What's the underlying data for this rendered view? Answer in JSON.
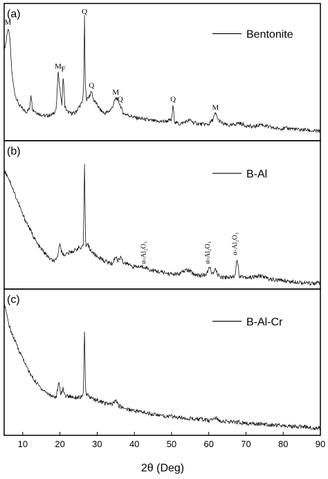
{
  "chart_data": {
    "type": "line",
    "shared_x_axis": {
      "label": "2θ (Deg)",
      "range": [
        5,
        90
      ],
      "ticks": [
        "10",
        "20",
        "30",
        "40",
        "50",
        "60",
        "70",
        "80",
        "90"
      ]
    },
    "panels": [
      {
        "label": "(a)",
        "series": [
          {
            "name": "Bentonite",
            "points": [
              [
                5,
                0.66
              ],
              [
                5.5,
                0.72
              ],
              [
                6,
                0.82
              ],
              [
                6.5,
                0.76
              ],
              [
                7,
                0.52
              ],
              [
                7.5,
                0.4
              ],
              [
                8,
                0.33
              ],
              [
                9,
                0.26
              ],
              [
                10,
                0.23
              ],
              [
                11,
                0.21
              ],
              [
                11.8,
                0.23
              ],
              [
                12.2,
                0.34
              ],
              [
                12.6,
                0.23
              ],
              [
                14,
                0.2
              ],
              [
                16,
                0.18
              ],
              [
                18,
                0.19
              ],
              [
                19,
                0.23
              ],
              [
                19.5,
                0.5
              ],
              [
                20,
                0.38
              ],
              [
                20.5,
                0.26
              ],
              [
                20.9,
                0.48
              ],
              [
                21.3,
                0.25
              ],
              [
                22,
                0.21
              ],
              [
                23,
                0.2
              ],
              [
                24,
                0.2
              ],
              [
                25,
                0.24
              ],
              [
                26,
                0.28
              ],
              [
                26.4,
                0.4
              ],
              [
                26.6,
                0.9
              ],
              [
                26.8,
                0.4
              ],
              [
                27.2,
                0.3
              ],
              [
                28,
                0.33
              ],
              [
                28.5,
                0.36
              ],
              [
                29,
                0.3
              ],
              [
                30,
                0.26
              ],
              [
                31,
                0.22
              ],
              [
                32,
                0.2
              ],
              [
                33,
                0.21
              ],
              [
                34,
                0.24
              ],
              [
                35,
                0.31
              ],
              [
                35.5,
                0.3
              ],
              [
                36.2,
                0.26
              ],
              [
                37,
                0.2
              ],
              [
                38,
                0.19
              ],
              [
                40,
                0.17
              ],
              [
                42,
                0.16
              ],
              [
                44,
                0.15
              ],
              [
                46,
                0.14
              ],
              [
                48,
                0.14
              ],
              [
                50,
                0.15
              ],
              [
                50.4,
                0.26
              ],
              [
                50.8,
                0.14
              ],
              [
                52,
                0.12
              ],
              [
                54,
                0.14
              ],
              [
                55,
                0.15
              ],
              [
                56,
                0.13
              ],
              [
                58,
                0.12
              ],
              [
                60,
                0.12
              ],
              [
                61,
                0.15
              ],
              [
                61.8,
                0.2
              ],
              [
                62.6,
                0.15
              ],
              [
                64,
                0.12
              ],
              [
                66,
                0.11
              ],
              [
                68,
                0.13
              ],
              [
                70,
                0.11
              ],
              [
                72,
                0.1
              ],
              [
                74,
                0.12
              ],
              [
                76,
                0.1
              ],
              [
                78,
                0.09
              ],
              [
                80,
                0.09
              ],
              [
                82,
                0.09
              ],
              [
                84,
                0.08
              ],
              [
                86,
                0.08
              ],
              [
                88,
                0.07
              ],
              [
                90,
                0.07
              ]
            ]
          }
        ],
        "annotations": [
          {
            "text": "M",
            "x": 6
          },
          {
            "text": "M",
            "x": 19.5
          },
          {
            "text": "F",
            "x": 20.9
          },
          {
            "text": "Q",
            "x": 26.6
          },
          {
            "text": "Q",
            "x": 28.5
          },
          {
            "text": "M",
            "x": 35
          },
          {
            "text": "Q",
            "x": 36.2
          },
          {
            "text": "Q",
            "x": 50.4
          },
          {
            "text": "M",
            "x": 61.8
          }
        ]
      },
      {
        "label": "(b)",
        "series": [
          {
            "name": "B-Al",
            "points": [
              [
                5,
                0.8
              ],
              [
                6,
                0.76
              ],
              [
                7,
                0.7
              ],
              [
                8,
                0.63
              ],
              [
                9,
                0.57
              ],
              [
                10,
                0.5
              ],
              [
                11,
                0.45
              ],
              [
                12,
                0.4
              ],
              [
                13,
                0.35
              ],
              [
                14,
                0.3
              ],
              [
                15,
                0.27
              ],
              [
                16,
                0.24
              ],
              [
                17,
                0.21
              ],
              [
                18,
                0.19
              ],
              [
                19,
                0.19
              ],
              [
                19.6,
                0.25
              ],
              [
                20,
                0.32
              ],
              [
                20.4,
                0.25
              ],
              [
                21,
                0.23
              ],
              [
                22,
                0.24
              ],
              [
                23,
                0.25
              ],
              [
                24,
                0.26
              ],
              [
                25,
                0.28
              ],
              [
                25.8,
                0.27
              ],
              [
                26.3,
                0.3
              ],
              [
                26.6,
                0.84
              ],
              [
                26.9,
                0.3
              ],
              [
                27.5,
                0.3
              ],
              [
                28,
                0.27
              ],
              [
                29,
                0.24
              ],
              [
                30,
                0.22
              ],
              [
                32,
                0.19
              ],
              [
                34,
                0.17
              ],
              [
                35,
                0.22
              ],
              [
                35.5,
                0.19
              ],
              [
                36.5,
                0.22
              ],
              [
                37,
                0.18
              ],
              [
                38,
                0.17
              ],
              [
                40,
                0.15
              ],
              [
                42,
                0.15
              ],
              [
                43,
                0.15
              ],
              [
                44,
                0.13
              ],
              [
                46,
                0.12
              ],
              [
                48,
                0.11
              ],
              [
                50,
                0.1
              ],
              [
                52,
                0.1
              ],
              [
                54,
                0.13
              ],
              [
                55,
                0.12
              ],
              [
                56,
                0.1
              ],
              [
                58,
                0.09
              ],
              [
                59.5,
                0.1
              ],
              [
                60.2,
                0.15
              ],
              [
                61,
                0.1
              ],
              [
                61.8,
                0.13
              ],
              [
                62.6,
                0.09
              ],
              [
                64,
                0.08
              ],
              [
                66,
                0.08
              ],
              [
                67,
                0.09
              ],
              [
                67.6,
                0.21
              ],
              [
                68.2,
                0.09
              ],
              [
                70,
                0.08
              ],
              [
                72,
                0.08
              ],
              [
                74,
                0.09
              ],
              [
                76,
                0.07
              ],
              [
                78,
                0.06
              ],
              [
                80,
                0.06
              ],
              [
                82,
                0.05
              ],
              [
                84,
                0.05
              ],
              [
                86,
                0.04
              ],
              [
                88,
                0.04
              ],
              [
                90,
                0.04
              ]
            ]
          }
        ],
        "annotations": [
          {
            "text": "α-Al₂O₃",
            "x": 43
          },
          {
            "text": "α-Al₂O₃",
            "x": 60.2
          },
          {
            "text": "α-Al₂O₃",
            "x": 67.6
          }
        ]
      },
      {
        "label": "(c)",
        "series": [
          {
            "name": "B-Al-Cr",
            "points": [
              [
                5,
                0.92
              ],
              [
                6,
                0.78
              ],
              [
                7,
                0.7
              ],
              [
                8,
                0.64
              ],
              [
                9,
                0.58
              ],
              [
                10,
                0.53
              ],
              [
                11,
                0.47
              ],
              [
                12,
                0.42
              ],
              [
                13,
                0.38
              ],
              [
                14,
                0.35
              ],
              [
                15,
                0.32
              ],
              [
                16,
                0.3
              ],
              [
                17,
                0.28
              ],
              [
                18,
                0.27
              ],
              [
                19,
                0.26
              ],
              [
                19.7,
                0.36
              ],
              [
                20.2,
                0.28
              ],
              [
                20.8,
                0.32
              ],
              [
                21.4,
                0.27
              ],
              [
                22,
                0.27
              ],
              [
                24,
                0.26
              ],
              [
                26,
                0.26
              ],
              [
                26.3,
                0.3
              ],
              [
                26.6,
                0.7
              ],
              [
                26.9,
                0.29
              ],
              [
                28,
                0.26
              ],
              [
                30,
                0.24
              ],
              [
                32,
                0.22
              ],
              [
                34,
                0.21
              ],
              [
                35,
                0.24
              ],
              [
                35.6,
                0.21
              ],
              [
                36,
                0.2
              ],
              [
                38,
                0.18
              ],
              [
                40,
                0.17
              ],
              [
                42,
                0.16
              ],
              [
                44,
                0.15
              ],
              [
                46,
                0.14
              ],
              [
                48,
                0.13
              ],
              [
                50,
                0.13
              ],
              [
                52,
                0.12
              ],
              [
                54,
                0.12
              ],
              [
                56,
                0.11
              ],
              [
                58,
                0.11
              ],
              [
                60,
                0.1
              ],
              [
                61.8,
                0.12
              ],
              [
                63,
                0.1
              ],
              [
                66,
                0.09
              ],
              [
                68,
                0.09
              ],
              [
                70,
                0.08
              ],
              [
                72,
                0.08
              ],
              [
                74,
                0.08
              ],
              [
                76,
                0.07
              ],
              [
                78,
                0.07
              ],
              [
                80,
                0.07
              ],
              [
                82,
                0.06
              ],
              [
                84,
                0.06
              ],
              [
                86,
                0.06
              ],
              [
                88,
                0.05
              ],
              [
                90,
                0.05
              ]
            ]
          }
        ],
        "annotations": []
      }
    ]
  }
}
